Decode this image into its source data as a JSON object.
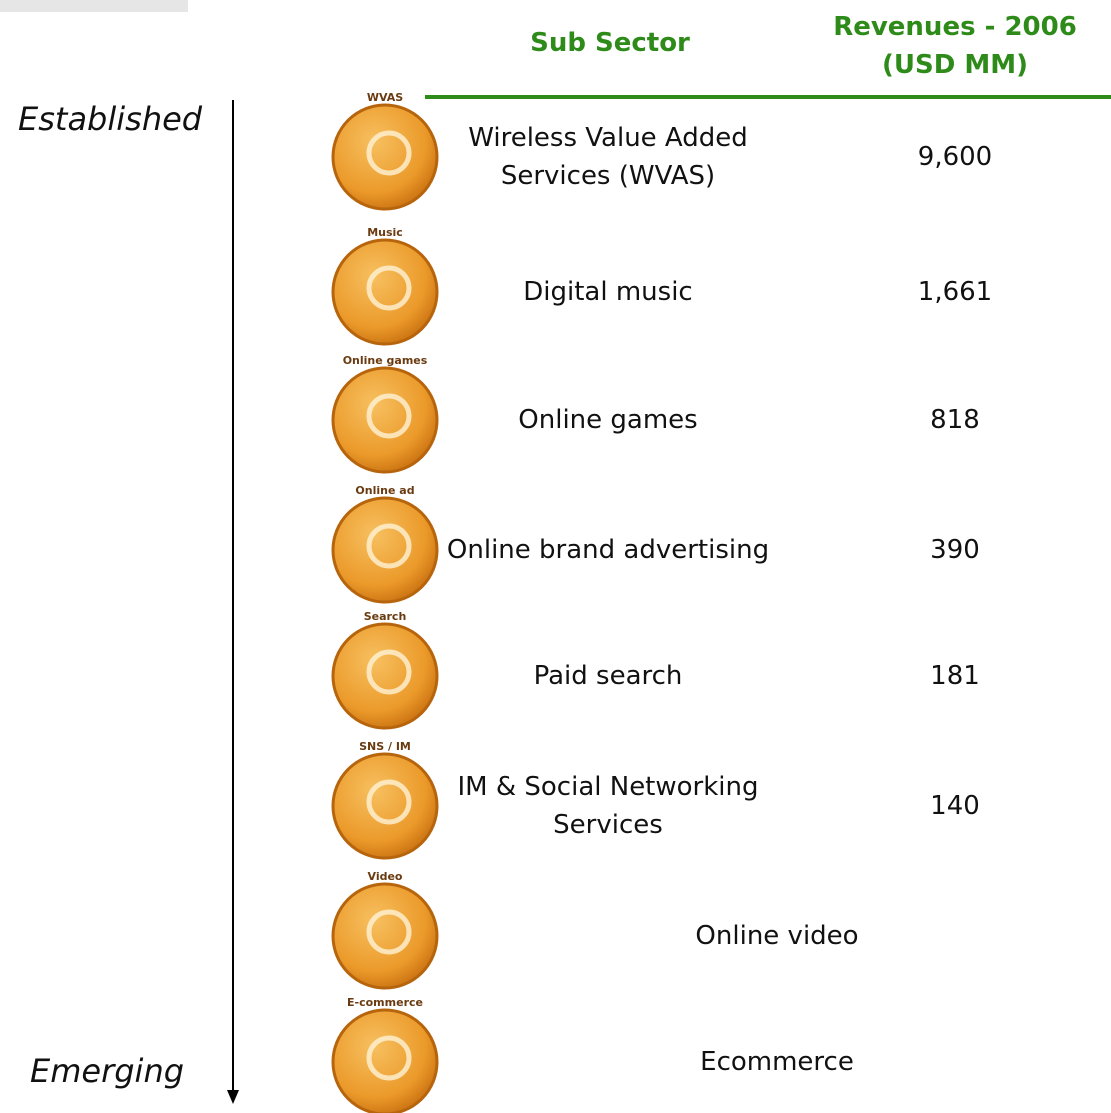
{
  "header": {
    "sub_sector": "Sub Sector",
    "revenues_line1": "Revenues - 2006",
    "revenues_line2": "(USD MM)"
  },
  "axis": {
    "top": "Established",
    "bottom": "Emerging"
  },
  "rows": [
    {
      "icon": "WVAS",
      "name": "Wireless Value Added Services (WVAS)",
      "revenue": "9,600"
    },
    {
      "icon": "Music",
      "name": "Digital music",
      "revenue": "1,661"
    },
    {
      "icon": "Online games",
      "name": "Online games",
      "revenue": "818"
    },
    {
      "icon": "Online ad",
      "name": "Online brand advertising",
      "revenue": "390"
    },
    {
      "icon": "Search",
      "name": "Paid search",
      "revenue": "181"
    },
    {
      "icon": "SNS / IM",
      "name": "IM & Social Networking Services",
      "revenue": "140"
    },
    {
      "icon": "Video",
      "name": "Online video"
    },
    {
      "icon": "E-commerce",
      "name": "Ecommerce"
    }
  ]
}
